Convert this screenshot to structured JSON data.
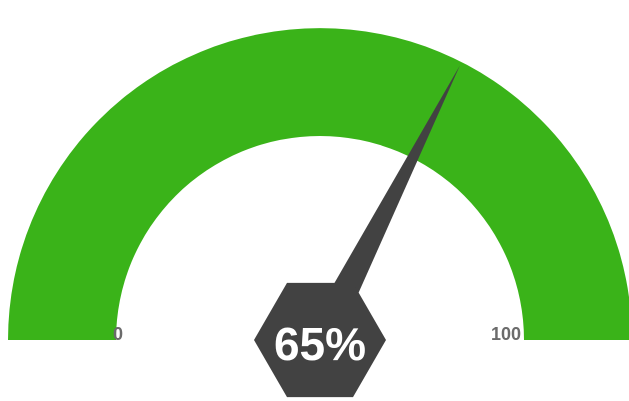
{
  "chart_data": {
    "type": "gauge",
    "value": 65,
    "min": 0,
    "max": 100,
    "min_label": "0",
    "max_label": "100",
    "value_label": "65%",
    "colors": {
      "arc": "#3ab319",
      "needle": "#424242",
      "hub": "#424242",
      "value_text": "#ffffff",
      "tick_text": "#6b6b6b"
    }
  }
}
